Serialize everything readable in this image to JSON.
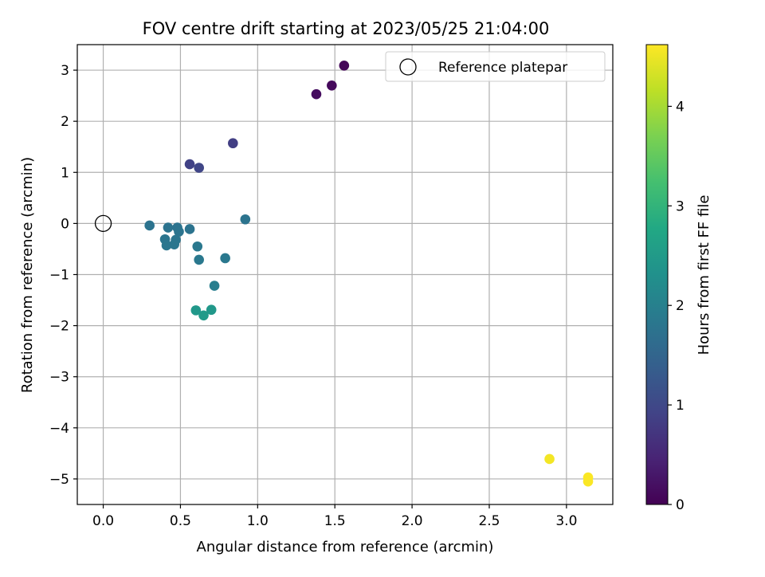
{
  "chart_data": {
    "type": "scatter",
    "title": "FOV centre drift starting at 2023/05/25 21:04:00",
    "xlabel": "Angular distance from reference (arcmin)",
    "ylabel": "Rotation from reference (arcmin)",
    "xlim": [
      -0.168,
      3.3
    ],
    "ylim": [
      -5.5,
      3.5
    ],
    "grid": true,
    "x_ticks": [
      0.0,
      0.5,
      1.0,
      1.5,
      2.0,
      2.5,
      3.0
    ],
    "x_tick_labels": [
      "0.0",
      "0.5",
      "1.0",
      "1.5",
      "2.0",
      "2.5",
      "3.0"
    ],
    "y_ticks": [
      3,
      2,
      1,
      0,
      -1,
      -2,
      -3,
      -4,
      -5
    ],
    "y_tick_labels": [
      "3",
      "2",
      "1",
      "0",
      "−1",
      "−2",
      "−3",
      "−4",
      "−5"
    ],
    "colormap": "viridis",
    "colorbar": {
      "label": "Hours from first FF file",
      "range": [
        0,
        4.62
      ],
      "ticks": [
        0,
        1,
        2,
        3,
        4
      ],
      "tick_labels": [
        "0",
        "1",
        "2",
        "3",
        "4"
      ]
    },
    "legend": {
      "position": "upper right",
      "entries": [
        {
          "label": "Reference platepar",
          "marker": "hollow-circle"
        }
      ]
    },
    "reference_point": {
      "x": 0.0,
      "y": 0.0
    },
    "points": [
      {
        "x": 1.56,
        "y": 3.09,
        "hours": 0.05
      },
      {
        "x": 1.48,
        "y": 2.7,
        "hours": 0.1
      },
      {
        "x": 1.38,
        "y": 2.53,
        "hours": 0.15
      },
      {
        "x": 0.84,
        "y": 1.57,
        "hours": 0.85
      },
      {
        "x": 0.56,
        "y": 1.16,
        "hours": 0.9
      },
      {
        "x": 0.62,
        "y": 1.09,
        "hours": 0.95
      },
      {
        "x": 0.3,
        "y": -0.04,
        "hours": 1.75
      },
      {
        "x": 0.42,
        "y": -0.08,
        "hours": 1.75
      },
      {
        "x": 0.48,
        "y": -0.08,
        "hours": 1.75
      },
      {
        "x": 0.49,
        "y": -0.16,
        "hours": 1.78
      },
      {
        "x": 0.56,
        "y": -0.11,
        "hours": 1.75
      },
      {
        "x": 0.92,
        "y": 0.08,
        "hours": 1.78
      },
      {
        "x": 0.4,
        "y": -0.31,
        "hours": 1.8
      },
      {
        "x": 0.47,
        "y": -0.32,
        "hours": 1.8
      },
      {
        "x": 0.41,
        "y": -0.43,
        "hours": 1.82
      },
      {
        "x": 0.46,
        "y": -0.41,
        "hours": 1.82
      },
      {
        "x": 0.61,
        "y": -0.45,
        "hours": 1.85
      },
      {
        "x": 0.62,
        "y": -0.71,
        "hours": 1.85
      },
      {
        "x": 0.79,
        "y": -0.68,
        "hours": 1.85
      },
      {
        "x": 0.72,
        "y": -1.22,
        "hours": 1.95
      },
      {
        "x": 0.6,
        "y": -1.7,
        "hours": 2.45
      },
      {
        "x": 0.7,
        "y": -1.69,
        "hours": 2.45
      },
      {
        "x": 0.65,
        "y": -1.8,
        "hours": 2.5
      },
      {
        "x": 2.89,
        "y": -4.61,
        "hours": 4.55
      },
      {
        "x": 3.14,
        "y": -4.97,
        "hours": 4.6
      },
      {
        "x": 3.14,
        "y": -5.05,
        "hours": 4.6
      }
    ]
  }
}
